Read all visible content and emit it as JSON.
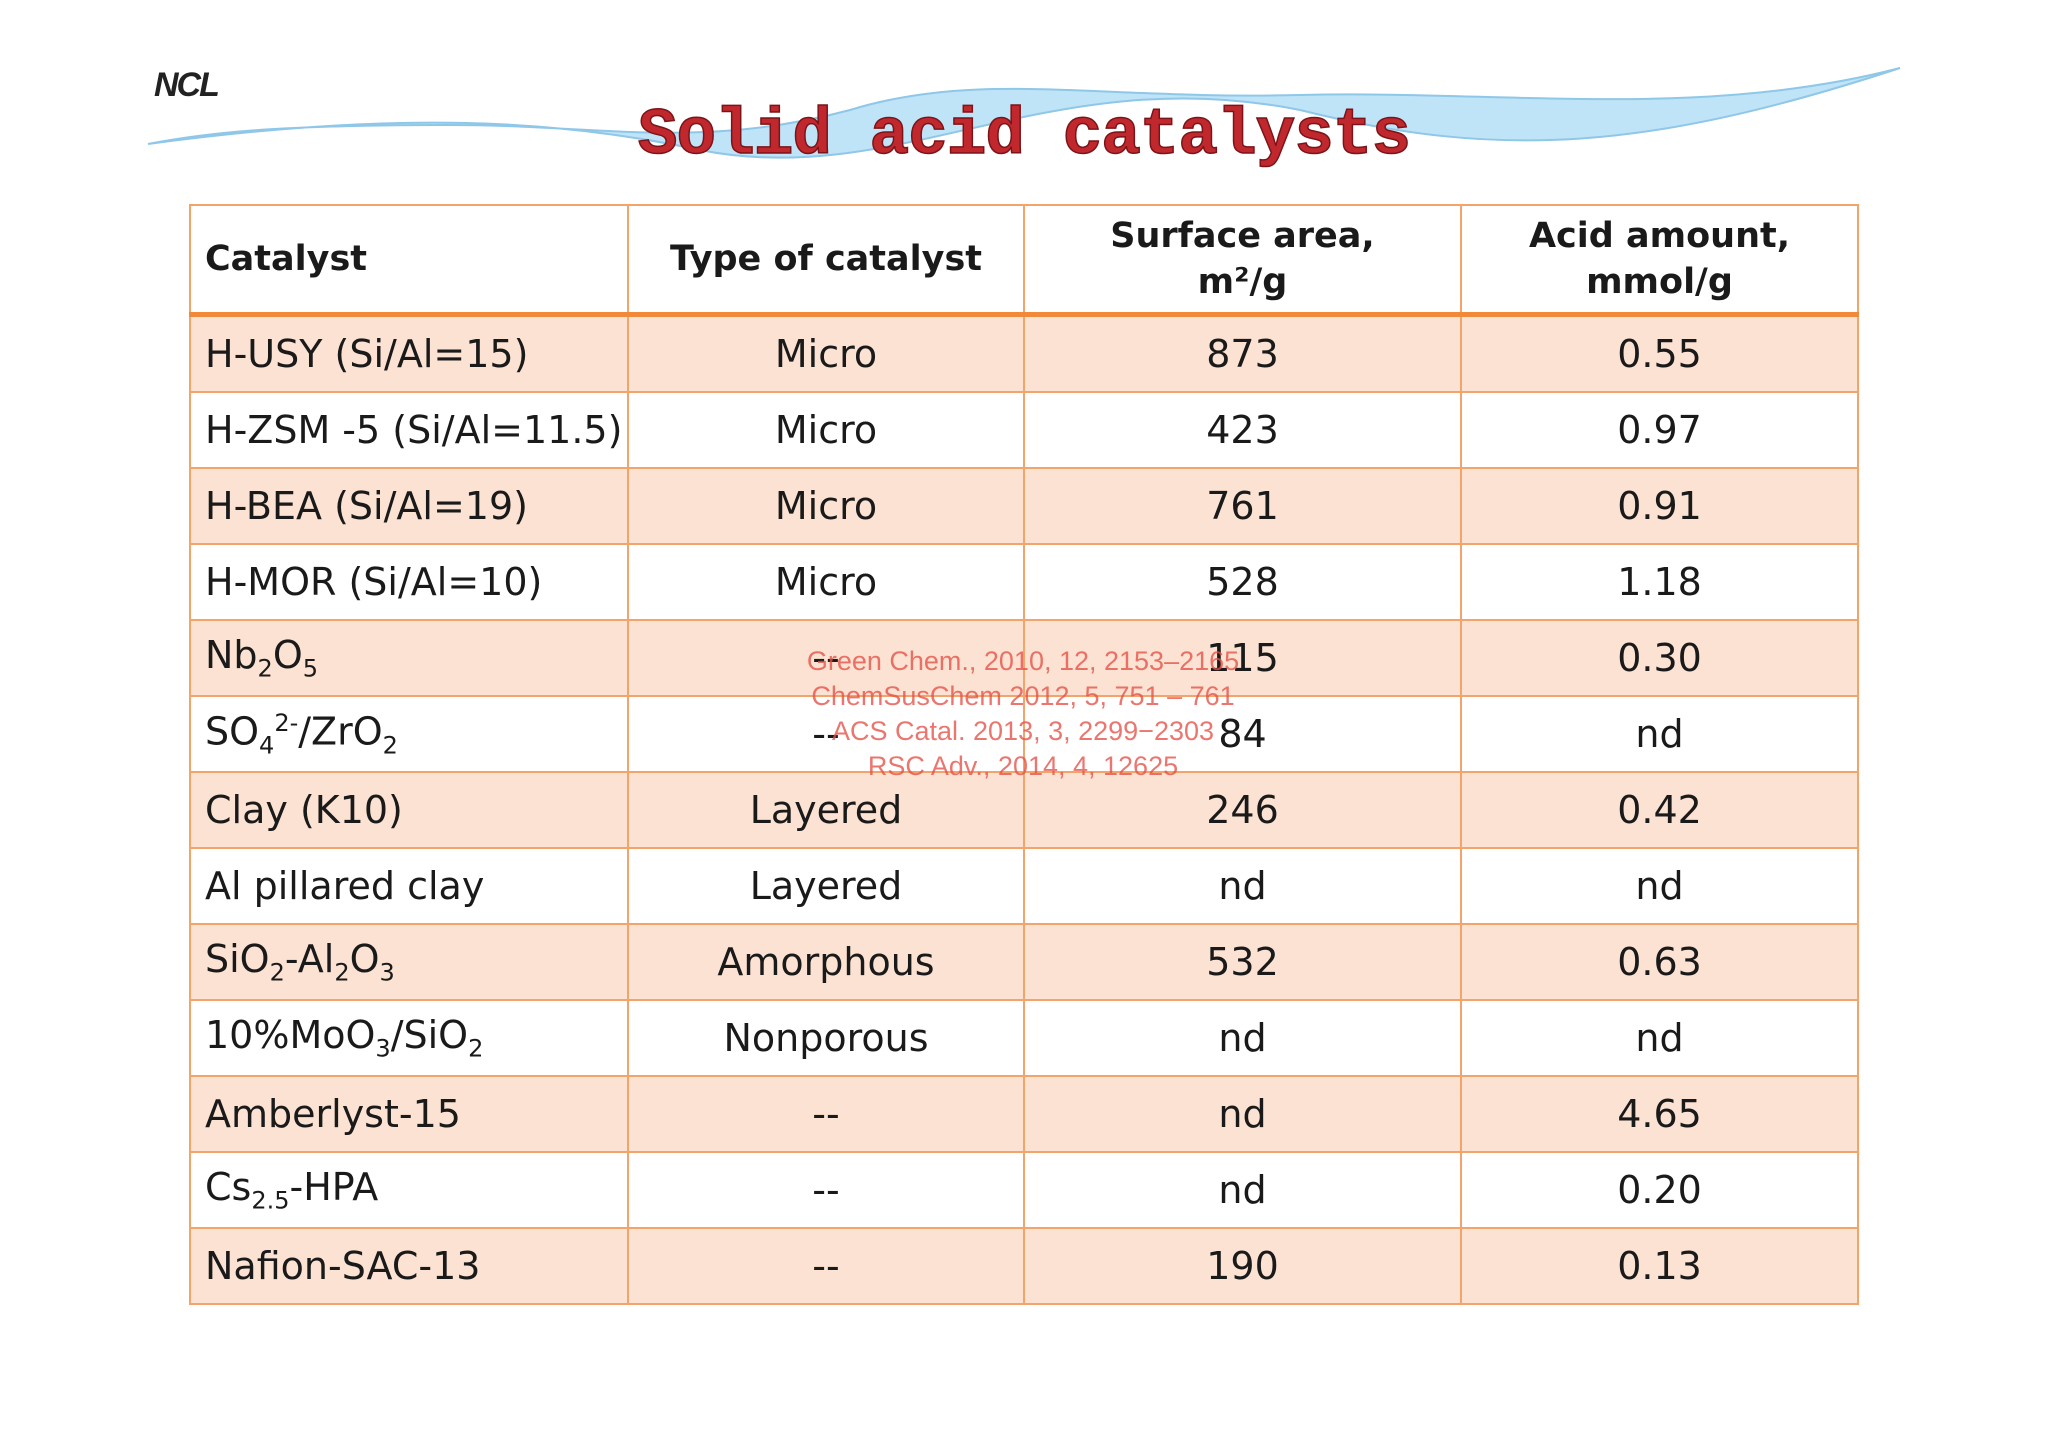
{
  "logo": "NCL",
  "title": "Solid acid catalysts",
  "table": {
    "headers": [
      [
        "Catalyst"
      ],
      [
        "Type of catalyst"
      ],
      [
        "Surface area,",
        "m²/g"
      ],
      [
        "Acid amount,",
        "mmol/g"
      ]
    ],
    "rows": [
      [
        [
          "H-USY (Si/Al=15)"
        ],
        [
          "Micro"
        ],
        [
          "873"
        ],
        [
          "0.55"
        ]
      ],
      [
        [
          "H-ZSM -5 (Si/Al=11.5)"
        ],
        [
          "Micro"
        ],
        [
          "423"
        ],
        [
          "0.97"
        ]
      ],
      [
        [
          "H-BEA (Si/Al=19)"
        ],
        [
          "Micro"
        ],
        [
          "761"
        ],
        [
          "0.91"
        ]
      ],
      [
        [
          "H-MOR (Si/Al=10)"
        ],
        [
          "Micro"
        ],
        [
          "528"
        ],
        [
          "1.18"
        ]
      ],
      [
        [
          "Nb",
          {
            "sub": "2"
          },
          "O",
          {
            "sub": "5"
          }
        ],
        [
          "--"
        ],
        [
          "115"
        ],
        [
          "0.30"
        ]
      ],
      [
        [
          "SO",
          {
            "sub": "4"
          },
          {
            "sup": "2-"
          },
          "/ZrO",
          {
            "sub": "2"
          }
        ],
        [
          "--"
        ],
        [
          "84"
        ],
        [
          "nd"
        ]
      ],
      [
        [
          "Clay (K10)"
        ],
        [
          "Layered"
        ],
        [
          "246"
        ],
        [
          "0.42"
        ]
      ],
      [
        [
          "Al pillared clay"
        ],
        [
          "Layered"
        ],
        [
          "nd"
        ],
        [
          "nd"
        ]
      ],
      [
        [
          "SiO",
          {
            "sub": "2"
          },
          "-Al",
          {
            "sub": "2"
          },
          "O",
          {
            "sub": "3"
          }
        ],
        [
          "Amorphous"
        ],
        [
          "532"
        ],
        [
          "0.63"
        ]
      ],
      [
        [
          "10%MoO",
          {
            "sub": "3"
          },
          "/SiO",
          {
            "sub": "2"
          }
        ],
        [
          "Nonporous"
        ],
        [
          "nd"
        ],
        [
          "nd"
        ]
      ],
      [
        [
          "Amberlyst-15"
        ],
        [
          "--"
        ],
        [
          "nd"
        ],
        [
          "4.65"
        ]
      ],
      [
        [
          "Cs",
          {
            "sub": "2.5"
          },
          "-HPA"
        ],
        [
          "--"
        ],
        [
          "nd"
        ],
        [
          "0.20"
        ]
      ],
      [
        [
          "Nafion-SAC-13"
        ],
        [
          "--"
        ],
        [
          "190"
        ],
        [
          "0.13"
        ]
      ]
    ]
  },
  "citations": [
    "Green Chem., 2010, 12, 2153–2165",
    "ChemSusChem 2012, 5, 751 – 761",
    "ACS Catal. 2013, 3, 2299−2303",
    "RSC Adv., 2014, 4, 12625"
  ]
}
